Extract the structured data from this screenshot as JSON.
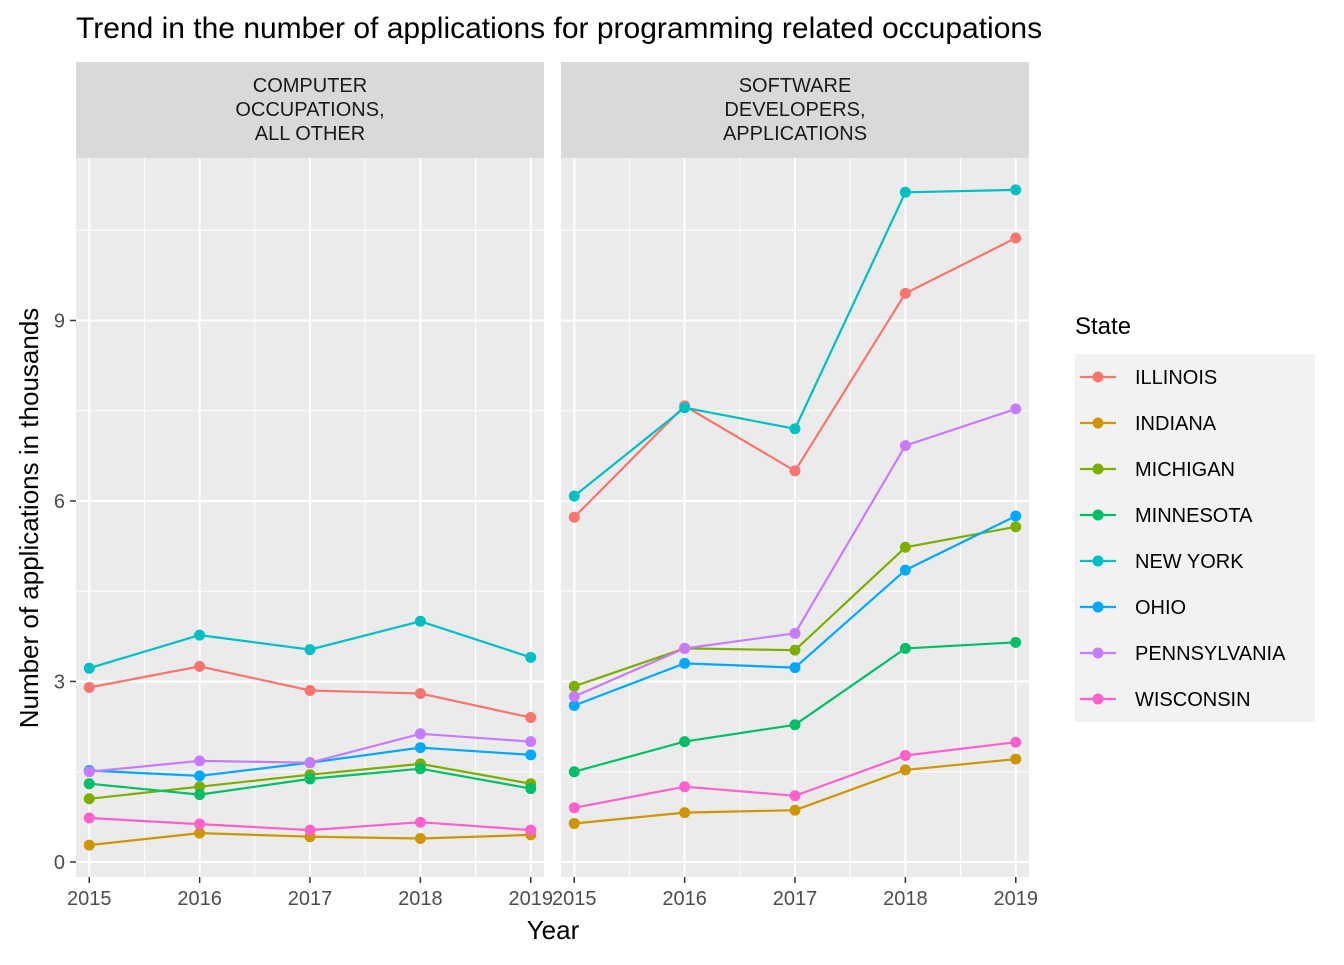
{
  "chart_data": {
    "type": "line",
    "title": "Trend in the number of applications for programming related occupations",
    "xlabel": "Year",
    "ylabel": "Number of applications in thousands",
    "legend_title": "State",
    "legend_position": "right",
    "x": [
      2015,
      2016,
      2017,
      2018,
      2019
    ],
    "xlim": [
      2014.88,
      2019.12
    ],
    "ylim": [
      -0.25,
      11.7
    ],
    "y_ticks": [
      0,
      3,
      6,
      9
    ],
    "x_ticks": [
      2015,
      2016,
      2017,
      2018,
      2019
    ],
    "grid": true,
    "series_meta": [
      {
        "name": "ILLINOIS",
        "color": "#F8766D"
      },
      {
        "name": "INDIANA",
        "color": "#CD9600"
      },
      {
        "name": "MICHIGAN",
        "color": "#7CAE00"
      },
      {
        "name": "MINNESOTA",
        "color": "#00BE67"
      },
      {
        "name": "NEW YORK",
        "color": "#00BFC4"
      },
      {
        "name": "OHIO",
        "color": "#00A9FF"
      },
      {
        "name": "PENNSYLVANIA",
        "color": "#C77CFF"
      },
      {
        "name": "WISCONSIN",
        "color": "#FF61CC"
      }
    ],
    "facets": [
      {
        "label_lines": [
          "COMPUTER",
          "OCCUPATIONS,",
          "ALL OTHER"
        ],
        "series": [
          {
            "name": "ILLINOIS",
            "values": [
              2.9,
              3.25,
              2.85,
              2.8,
              2.4
            ]
          },
          {
            "name": "INDIANA",
            "values": [
              0.28,
              0.48,
              0.42,
              0.39,
              0.45
            ]
          },
          {
            "name": "MICHIGAN",
            "values": [
              1.05,
              1.25,
              1.45,
              1.63,
              1.3
            ]
          },
          {
            "name": "MINNESOTA",
            "values": [
              1.3,
              1.12,
              1.38,
              1.55,
              1.22
            ]
          },
          {
            "name": "NEW YORK",
            "values": [
              3.22,
              3.77,
              3.53,
              4.0,
              3.4
            ]
          },
          {
            "name": "OHIO",
            "values": [
              1.52,
              1.43,
              1.65,
              1.9,
              1.78
            ]
          },
          {
            "name": "PENNSYLVANIA",
            "values": [
              1.5,
              1.68,
              1.65,
              2.13,
              2.0
            ]
          },
          {
            "name": "WISCONSIN",
            "values": [
              0.73,
              0.63,
              0.53,
              0.66,
              0.53
            ]
          }
        ]
      },
      {
        "label_lines": [
          "SOFTWARE",
          "DEVELOPERS,",
          "APPLICATIONS"
        ],
        "series": [
          {
            "name": "ILLINOIS",
            "values": [
              5.73,
              7.58,
              6.5,
              9.45,
              10.37
            ]
          },
          {
            "name": "INDIANA",
            "values": [
              0.64,
              0.82,
              0.86,
              1.53,
              1.71
            ]
          },
          {
            "name": "MICHIGAN",
            "values": [
              2.92,
              3.55,
              3.52,
              5.23,
              5.57
            ]
          },
          {
            "name": "MINNESOTA",
            "values": [
              1.5,
              2.0,
              2.28,
              3.55,
              3.65
            ]
          },
          {
            "name": "NEW YORK",
            "values": [
              6.08,
              7.55,
              7.2,
              11.13,
              11.17
            ]
          },
          {
            "name": "OHIO",
            "values": [
              2.6,
              3.3,
              3.23,
              4.85,
              5.75
            ]
          },
          {
            "name": "PENNSYLVANIA",
            "values": [
              2.75,
              3.55,
              3.8,
              6.92,
              7.53
            ]
          },
          {
            "name": "WISCONSIN",
            "values": [
              0.9,
              1.25,
              1.1,
              1.77,
              1.99
            ]
          }
        ]
      }
    ]
  }
}
